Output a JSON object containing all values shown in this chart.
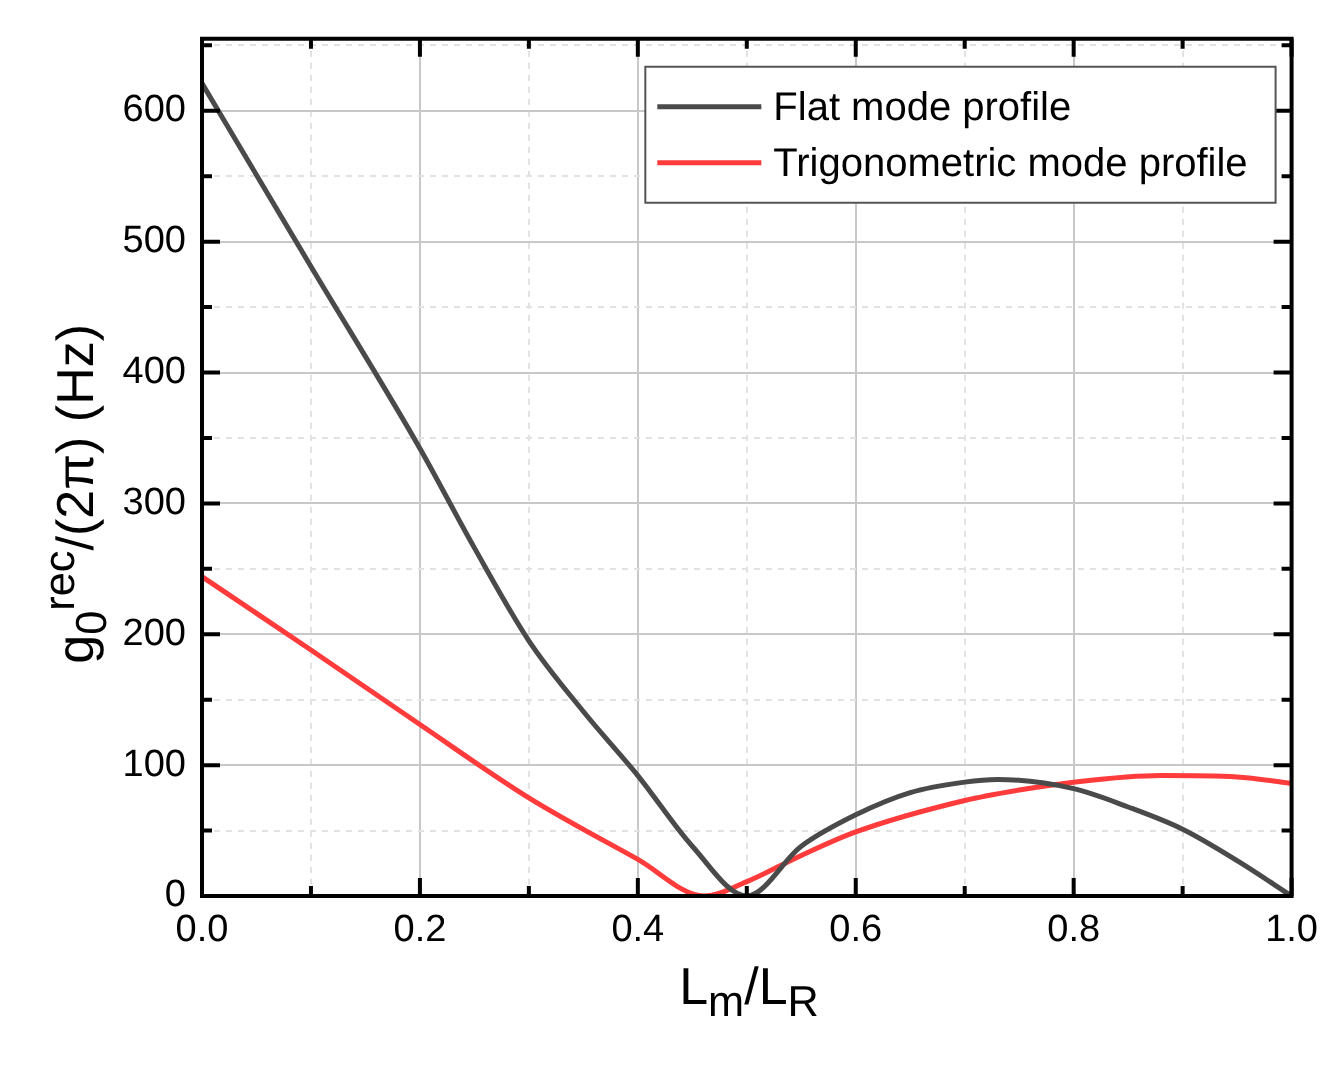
{
  "chart_data": {
    "type": "line",
    "xlabel": "L$_{m}$/L$_{R}$",
    "ylabel": "g$_{0}$$^{rec}$/(2π) (Hz)",
    "x": [
      0,
      0.1,
      0.2,
      0.25,
      0.3,
      0.35,
      0.4,
      0.45,
      0.5,
      0.55,
      0.6,
      0.65,
      0.7,
      0.73,
      0.8,
      0.85,
      0.9,
      0.95,
      1.0
    ],
    "series": [
      {
        "name": "Flat mode profile",
        "color": "#4a4a4a",
        "values": [
          621,
          481,
          342,
          266,
          195,
          141,
          92,
          38,
          0,
          38,
          62,
          79,
          87,
          89,
          82,
          68,
          51,
          27,
          0
        ]
      },
      {
        "name": "Trigonometric mode profile",
        "color": "#ff3b3b",
        "x": [
          0,
          0.1,
          0.2,
          0.3,
          0.4,
          0.461,
          0.5,
          0.55,
          0.6,
          0.7,
          0.75,
          0.8,
          0.88,
          0.95,
          1.0
        ],
        "values": [
          244,
          188,
          131,
          75,
          28,
          0,
          11,
          31,
          49,
          73,
          81,
          87,
          92,
          91,
          86
        ]
      }
    ],
    "xlim": [
      0,
      1
    ],
    "ylim": [
      0,
      655
    ],
    "xticks": [
      {
        "value": 0,
        "label": "0.0"
      },
      {
        "value": 0.1,
        "label": null
      },
      {
        "value": 0.2,
        "label": "0.2"
      },
      {
        "value": 0.3,
        "label": null
      },
      {
        "value": 0.4,
        "label": "0.4"
      },
      {
        "value": 0.5,
        "label": null
      },
      {
        "value": 0.6,
        "label": "0.6"
      },
      {
        "value": 0.7,
        "label": null
      },
      {
        "value": 0.8,
        "label": "0.8"
      },
      {
        "value": 0.9,
        "label": null
      },
      {
        "value": 1,
        "label": "1.0"
      }
    ],
    "yticks": [
      0,
      {
        "value": 50,
        "label": null
      },
      100,
      {
        "value": 150,
        "label": null
      },
      200,
      {
        "value": 250,
        "label": null
      },
      300,
      {
        "value": 350,
        "label": null
      },
      400,
      {
        "value": 450,
        "label": null
      },
      500,
      {
        "value": 550,
        "label": null
      },
      600,
      {
        "value": 650,
        "label": null
      }
    ],
    "grid": true,
    "legend": "top right",
    "line_style": "solid",
    "marker": "none"
  }
}
